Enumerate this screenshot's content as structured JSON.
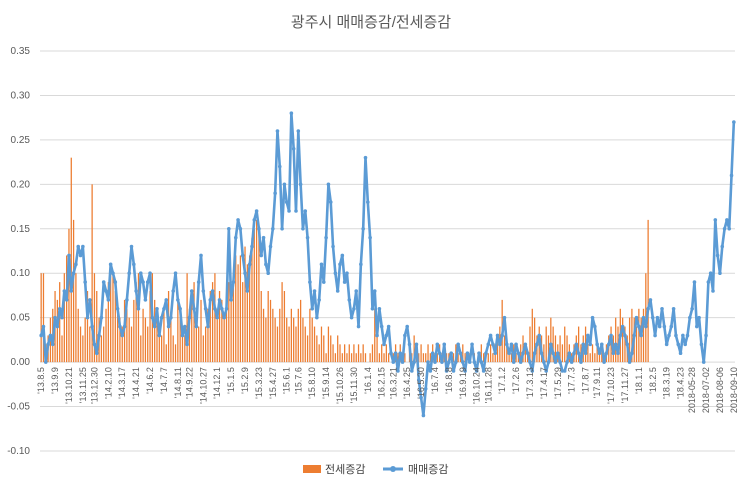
{
  "chart_data": {
    "type": "bar+line",
    "title": "광주시 매매증감/전세증감",
    "ylim": [
      -0.1,
      0.35
    ],
    "y_ticks": [
      -0.1,
      -0.05,
      0.0,
      0.05,
      0.1,
      0.15,
      0.2,
      0.25,
      0.3,
      0.35
    ],
    "y_tick_labels": [
      "-0.10",
      "-0.05",
      "0.00",
      "0.05",
      "0.10",
      "0.15",
      "0.20",
      "0.25",
      "0.30",
      "0.35"
    ],
    "grid": true,
    "legend_position": "bottom",
    "x_tick_labels": [
      "'13.8.5",
      "'13.9.9",
      "'13.10.21",
      "'13.11.25",
      "'13.12.30",
      "'14.2.10",
      "'14.3.17",
      "'14.4.21",
      "'14.6.2",
      "'14.7.7",
      "'14.8.11",
      "'14.9.22",
      "'14.10.27",
      "'14.12.1",
      "'15.1.5",
      "'15.2.9",
      "'15.3.23",
      "'15.4.27",
      "'15.6.1",
      "'15.7.6",
      "'15.8.10",
      "'15.9.14",
      "'15.10.26",
      "'15.11.30",
      "'16.1.4",
      "'16.2.15",
      "'16.3.21",
      "'16.4.25",
      "'16.5.30",
      "'16.7.4",
      "'16.8.8",
      "'16.9.19",
      "'16.10.24",
      "'16.11.28",
      "'17.1.2",
      "'17.2.6",
      "'17.3.13",
      "'17.4.17",
      "'17.5.29",
      "'17.7.3",
      "'17.8.7",
      "'17.9.11",
      "'17.10.23",
      "'17.11.27",
      "'18.1.1",
      "'18.2.5",
      "'18.3.19",
      "'18.4.23",
      "2018-05-28",
      "2018-07-02",
      "2018-08-06",
      "2018-09-10"
    ],
    "series": [
      {
        "name": "전세증감",
        "type": "bar",
        "color": "#ED7D31",
        "values": [
          0.1,
          0.1,
          0.02,
          0.03,
          0.05,
          0.06,
          0.08,
          0.07,
          0.09,
          0.03,
          0.1,
          0.12,
          0.15,
          0.23,
          0.16,
          0.1,
          0.06,
          0.04,
          0.03,
          0.05,
          0.08,
          0.04,
          0.2,
          0.1,
          0.08,
          0.05,
          0.03,
          0.04,
          0.06,
          0.09,
          0.1,
          0.1,
          0.08,
          0.06,
          0.05,
          0.04,
          0.07,
          0.06,
          0.05,
          0.04,
          0.07,
          0.09,
          0.1,
          0.03,
          0.06,
          0.05,
          0.04,
          0.08,
          0.1,
          0.07,
          0.05,
          0.04,
          0.03,
          0.06,
          0.02,
          0.08,
          0.05,
          0.03,
          0.02,
          0.07,
          0.06,
          0.04,
          0.03,
          0.1,
          0.06,
          0.08,
          0.09,
          0.05,
          0.04,
          0.07,
          0.03,
          0.04,
          0.06,
          0.08,
          0.09,
          0.1,
          0.06,
          0.08,
          0.07,
          0.05,
          0.06,
          0.09,
          0.08,
          0.1,
          0.12,
          0.11,
          0.12,
          0.09,
          0.13,
          0.11,
          0.12,
          0.14,
          0.15,
          0.16,
          0.15,
          0.08,
          0.06,
          0.05,
          0.08,
          0.07,
          0.06,
          0.05,
          0.04,
          0.06,
          0.09,
          0.08,
          0.05,
          0.04,
          0.06,
          0.05,
          0.04,
          0.06,
          0.07,
          0.05,
          0.04,
          0.03,
          0.06,
          0.05,
          0.04,
          0.03,
          0.02,
          0.04,
          0.03,
          0.01,
          0.04,
          0.03,
          0.02,
          0.01,
          0.03,
          0.02,
          0.01,
          0.02,
          0.01,
          0.02,
          0.01,
          0.02,
          0.01,
          0.02,
          0.01,
          0.02,
          0.01,
          0.0,
          0.01,
          0.02,
          0.06,
          0.05,
          0.01,
          0.02,
          0.01,
          0.02,
          0.01,
          0.0,
          0.01,
          0.02,
          0.01,
          0.02,
          0.01,
          0.01,
          0.0,
          0.02,
          0.01,
          0.03,
          0.02,
          0.01,
          0.02,
          0.01,
          0.01,
          0.02,
          0.01,
          0.02,
          0.01,
          0.01,
          0.02,
          0.01,
          0.02,
          0.01,
          0.01,
          0.0,
          0.01,
          0.02,
          0.01,
          0.01,
          0.02,
          0.01,
          0.0,
          0.01,
          0.0,
          0.01,
          0.0,
          0.01,
          0.02,
          0.01,
          0.0,
          0.01,
          0.02,
          0.01,
          0.02,
          0.03,
          0.04,
          0.07,
          0.03,
          0.02,
          0.01,
          0.01,
          0.02,
          0.01,
          0.01,
          0.02,
          0.03,
          0.02,
          0.01,
          0.04,
          0.06,
          0.05,
          0.03,
          0.04,
          0.03,
          0.02,
          0.04,
          0.03,
          0.05,
          0.04,
          0.03,
          0.02,
          0.03,
          0.02,
          0.04,
          0.03,
          0.02,
          0.01,
          0.02,
          0.03,
          0.04,
          0.02,
          0.03,
          0.04,
          0.02,
          0.01,
          0.02,
          0.01,
          0.02,
          0.01,
          0.02,
          0.01,
          0.02,
          0.03,
          0.04,
          0.03,
          0.05,
          0.04,
          0.06,
          0.05,
          0.04,
          0.03,
          0.05,
          0.06,
          0.05,
          0.04,
          0.06,
          0.05,
          0.06,
          0.1,
          0.16
        ],
        "note": ""
      },
      {
        "name": "매매증감",
        "type": "line",
        "color": "#5B9BD5",
        "values": [
          0.03,
          0.04,
          0.0,
          0.02,
          0.03,
          0.02,
          0.05,
          0.04,
          0.06,
          0.05,
          0.08,
          0.07,
          0.12,
          0.08,
          0.1,
          0.11,
          0.13,
          0.12,
          0.13,
          0.09,
          0.05,
          0.07,
          0.04,
          0.02,
          0.01,
          0.03,
          0.05,
          0.09,
          0.08,
          0.07,
          0.11,
          0.1,
          0.09,
          0.06,
          0.04,
          0.03,
          0.04,
          0.07,
          0.1,
          0.13,
          0.11,
          0.08,
          0.06,
          0.1,
          0.09,
          0.07,
          0.09,
          0.1,
          0.05,
          0.04,
          0.06,
          0.03,
          0.05,
          0.06,
          0.07,
          0.04,
          0.05,
          0.08,
          0.1,
          0.07,
          0.06,
          0.03,
          0.04,
          0.02,
          0.05,
          0.08,
          0.06,
          0.04,
          0.09,
          0.12,
          0.08,
          0.06,
          0.04,
          0.07,
          0.08,
          0.06,
          0.05,
          0.07,
          0.06,
          0.05,
          0.06,
          0.15,
          0.07,
          0.09,
          0.14,
          0.16,
          0.15,
          0.12,
          0.1,
          0.08,
          0.11,
          0.13,
          0.16,
          0.17,
          0.15,
          0.12,
          0.14,
          0.11,
          0.1,
          0.13,
          0.15,
          0.19,
          0.26,
          0.22,
          0.15,
          0.2,
          0.18,
          0.17,
          0.28,
          0.24,
          0.17,
          0.26,
          0.2,
          0.15,
          0.17,
          0.14,
          0.09,
          0.06,
          0.08,
          0.05,
          0.07,
          0.11,
          0.09,
          0.14,
          0.2,
          0.18,
          0.13,
          0.1,
          0.08,
          0.11,
          0.12,
          0.09,
          0.1,
          0.07,
          0.05,
          0.06,
          0.08,
          0.04,
          0.11,
          0.15,
          0.23,
          0.18,
          0.14,
          0.06,
          0.08,
          0.03,
          0.06,
          0.04,
          0.02,
          0.03,
          0.04,
          0.01,
          0.0,
          0.01,
          -0.01,
          0.01,
          0.0,
          0.03,
          0.04,
          0.02,
          -0.01,
          0.0,
          0.02,
          -0.02,
          -0.04,
          -0.06,
          -0.03,
          0.0,
          -0.01,
          0.01,
          0.0,
          0.02,
          0.01,
          0.0,
          0.02,
          -0.01,
          0.0,
          0.01,
          -0.01,
          0.0,
          0.02,
          0.01,
          0.0,
          -0.01,
          0.01,
          0.0,
          0.02,
          0.0,
          -0.01,
          0.01,
          0.0,
          -0.01,
          0.01,
          0.02,
          0.03,
          0.02,
          0.01,
          0.03,
          0.02,
          0.03,
          0.05,
          0.02,
          0.01,
          0.02,
          0.0,
          0.02,
          0.01,
          0.0,
          0.01,
          0.02,
          0.01,
          0.0,
          -0.01,
          0.01,
          0.02,
          0.03,
          0.01,
          0.0,
          -0.01,
          0.0,
          0.02,
          0.01,
          0.0,
          0.01,
          0.0,
          -0.01,
          -0.01,
          0.0,
          0.01,
          0.0,
          0.01,
          0.02,
          0.01,
          0.0,
          0.02,
          0.01,
          0.03,
          0.02,
          0.05,
          0.04,
          0.02,
          0.01,
          0.02,
          0.0,
          0.01,
          0.02,
          0.03,
          0.01,
          0.02,
          0.01,
          0.03,
          0.04,
          0.03,
          0.02,
          0.0,
          0.01,
          0.03,
          0.05,
          0.04,
          0.03,
          0.05,
          0.04,
          0.06,
          0.07,
          0.05,
          0.03,
          0.05,
          0.04,
          0.06,
          0.04,
          0.02,
          0.03,
          0.04,
          0.06,
          0.03,
          0.02,
          0.01,
          0.03,
          0.02,
          0.03,
          0.05,
          0.06,
          0.09,
          0.04,
          0.05,
          0.02,
          0.0,
          0.03,
          0.09,
          0.1,
          0.08,
          0.16,
          0.12,
          0.1,
          0.13,
          0.15,
          0.16,
          0.15,
          0.21,
          0.27
        ]
      }
    ]
  }
}
